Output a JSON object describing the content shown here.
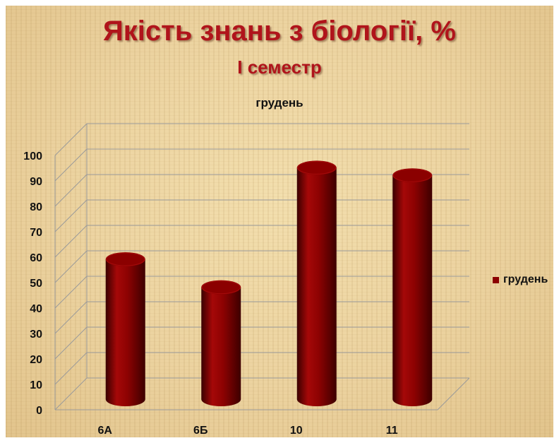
{
  "header": {
    "title": "Якість знань з біології, %",
    "subtitle": "І семестр"
  },
  "colors": {
    "title": "#b0141b",
    "bar": "#8b0000",
    "grid": "#9a9a9a"
  },
  "chart_data": {
    "type": "bar",
    "title": "грудень",
    "categories": [
      "6А",
      "6Б",
      "10",
      "11"
    ],
    "series": [
      {
        "name": "грудень",
        "values": [
          55,
          44,
          91,
          88
        ]
      }
    ],
    "ylim": [
      0,
      100
    ],
    "yticks": [
      0,
      10,
      20,
      30,
      40,
      50,
      60,
      70,
      80,
      90,
      100
    ],
    "grid": true,
    "legend_position": "right",
    "style": "3d-cylinder"
  }
}
